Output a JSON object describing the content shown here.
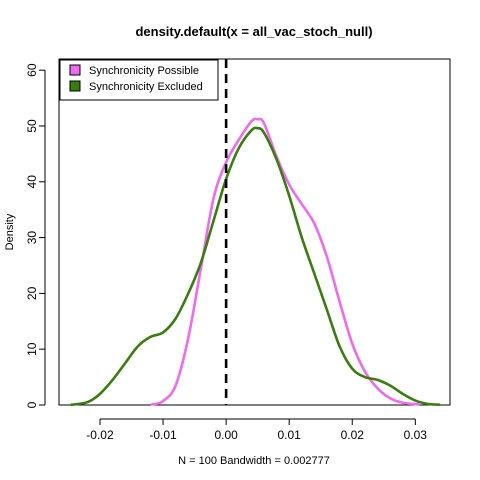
{
  "chart_data": {
    "type": "line",
    "title": "density.default(x = all_vac_stoch_null)",
    "xlabel": "N = 100   Bandwidth = 0.002777",
    "ylabel": "Density",
    "xlim": [
      -0.0265,
      0.0355
    ],
    "ylim": [
      0,
      62
    ],
    "x_ticks": [
      -0.02,
      -0.01,
      0.0,
      0.01,
      0.02,
      0.03
    ],
    "x_tick_labels": [
      "-0.02",
      "-0.01",
      "0.00",
      "0.01",
      "0.02",
      "0.03"
    ],
    "y_ticks": [
      0,
      10,
      20,
      30,
      40,
      50,
      60
    ],
    "y_tick_labels": [
      "0",
      "10",
      "20",
      "30",
      "40",
      "50",
      "60"
    ],
    "vline": {
      "x": 0.0,
      "style": "dashed",
      "color": "#000000"
    },
    "legend": {
      "position": "top-left"
    },
    "series": [
      {
        "name": "Synchronicity Possible",
        "color": "#EE6AEE",
        "x": [
          -0.0118,
          -0.01,
          -0.008,
          -0.006,
          -0.004,
          -0.002,
          0.0,
          0.002,
          0.004,
          0.005,
          0.006,
          0.008,
          0.01,
          0.012,
          0.014,
          0.016,
          0.018,
          0.02,
          0.022,
          0.024,
          0.026,
          0.028,
          0.0305
        ],
        "y": [
          0.1,
          0.7,
          3.5,
          12.0,
          24.5,
          37.0,
          43.5,
          47.5,
          50.8,
          51.2,
          50.5,
          44.5,
          39.5,
          36.0,
          32.5,
          26.5,
          18.5,
          11.0,
          6.0,
          3.0,
          1.2,
          0.4,
          0.1
        ]
      },
      {
        "name": "Synchronicity Excluded",
        "color": "#3A7C0F",
        "x": [
          -0.0245,
          -0.022,
          -0.02,
          -0.018,
          -0.016,
          -0.014,
          -0.012,
          -0.01,
          -0.008,
          -0.006,
          -0.004,
          -0.002,
          0.0,
          0.002,
          0.004,
          0.005,
          0.006,
          0.008,
          0.01,
          0.012,
          0.014,
          0.016,
          0.018,
          0.02,
          0.022,
          0.024,
          0.026,
          0.028,
          0.03,
          0.032,
          0.0338
        ],
        "y": [
          0.05,
          0.5,
          2.0,
          4.5,
          7.5,
          10.5,
          12.2,
          13.0,
          15.5,
          20.0,
          25.5,
          33.0,
          40.5,
          46.0,
          49.2,
          49.6,
          48.8,
          44.0,
          37.5,
          30.0,
          23.5,
          17.0,
          10.5,
          6.5,
          5.0,
          4.5,
          3.5,
          2.0,
          0.8,
          0.2,
          0.05
        ]
      }
    ]
  }
}
